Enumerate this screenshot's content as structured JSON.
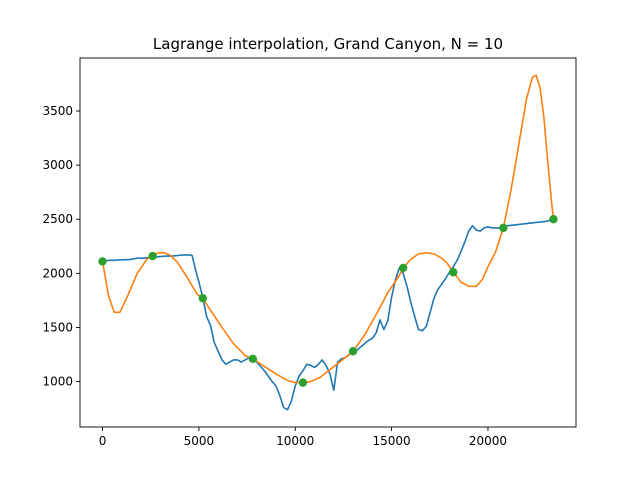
{
  "chart_data": {
    "type": "line",
    "title": "Lagrange interpolation, Grand Canyon, N = 10",
    "xlabel": "",
    "ylabel": "",
    "xlim": [
      -1170,
      24570
    ],
    "ylim": [
      580,
      3990
    ],
    "xticks": [
      0,
      5000,
      10000,
      15000,
      20000
    ],
    "yticks": [
      1000,
      1500,
      2000,
      2500,
      3000,
      3500
    ],
    "grid": false,
    "colors": {
      "profile": "#1f77b4",
      "interpolant": "#ff7f0e",
      "nodes": "#2ca02c"
    },
    "series": [
      {
        "kind": "line",
        "color": "#1f77b4",
        "x": [
          0,
          300,
          600,
          900,
          1200,
          1500,
          1800,
          2100,
          2400,
          2700,
          3000,
          3300,
          3600,
          3900,
          4200,
          4500,
          4650,
          4800,
          5000,
          5200,
          5400,
          5600,
          5800,
          6000,
          6200,
          6400,
          6600,
          6800,
          7000,
          7200,
          7400,
          7600,
          7800,
          8000,
          8200,
          8400,
          8600,
          8800,
          9000,
          9200,
          9400,
          9600,
          9800,
          10000,
          10200,
          10400,
          10600,
          10800,
          11000,
          11200,
          11400,
          11600,
          11800,
          12000,
          12200,
          12400,
          12600,
          12800,
          13000,
          13200,
          13400,
          13600,
          13800,
          14000,
          14200,
          14400,
          14600,
          14800,
          15000,
          15200,
          15400,
          15600,
          15800,
          16000,
          16200,
          16400,
          16600,
          16800,
          17000,
          17200,
          17400,
          17600,
          17800,
          18000,
          18200,
          18400,
          18600,
          18800,
          19000,
          19200,
          19400,
          19600,
          19800,
          20000,
          20200,
          20400,
          20600,
          20800,
          21000,
          21500,
          22000,
          22500,
          23000,
          23400
        ],
        "y": [
          2110,
          2120,
          2120,
          2125,
          2125,
          2130,
          2140,
          2140,
          2145,
          2150,
          2155,
          2160,
          2160,
          2165,
          2170,
          2170,
          2165,
          2050,
          1920,
          1780,
          1600,
          1520,
          1360,
          1280,
          1200,
          1160,
          1180,
          1200,
          1200,
          1180,
          1200,
          1220,
          1210,
          1180,
          1140,
          1100,
          1050,
          1000,
          960,
          870,
          760,
          740,
          820,
          960,
          1050,
          1100,
          1160,
          1150,
          1130,
          1160,
          1200,
          1150,
          1070,
          920,
          1180,
          1210,
          1220,
          1250,
          1270,
          1290,
          1320,
          1350,
          1380,
          1400,
          1450,
          1570,
          1480,
          1560,
          1780,
          1940,
          2050,
          2000,
          1880,
          1730,
          1600,
          1480,
          1470,
          1510,
          1640,
          1770,
          1850,
          1900,
          1950,
          2010,
          2060,
          2120,
          2200,
          2290,
          2390,
          2440,
          2400,
          2390,
          2420,
          2430,
          2420,
          2420,
          2420,
          2430,
          2440,
          2450,
          2460,
          2470,
          2480,
          2500
        ]
      },
      {
        "kind": "line",
        "color": "#ff7f0e",
        "x": [
          0,
          300,
          600,
          900,
          1300,
          1800,
          2300,
          2600,
          2900,
          3200,
          3500,
          3900,
          4400,
          4900,
          5200,
          5600,
          6200,
          6800,
          7400,
          7800,
          8400,
          9000,
          9600,
          10000,
          10400,
          10800,
          11300,
          11800,
          12300,
          13000,
          13600,
          14200,
          14800,
          15400,
          15600,
          16000,
          16400,
          16800,
          17200,
          17600,
          17900,
          18200,
          18600,
          19000,
          19400,
          19700,
          20000,
          20400,
          20800,
          21200,
          21600,
          22000,
          22300,
          22500,
          22700,
          22900,
          23100,
          23300,
          23400
        ],
        "y": [
          2110,
          1800,
          1640,
          1640,
          1790,
          2000,
          2130,
          2170,
          2190,
          2190,
          2170,
          2100,
          1960,
          1810,
          1770,
          1660,
          1500,
          1350,
          1240,
          1210,
          1140,
          1070,
          1010,
          990,
          990,
          1000,
          1040,
          1110,
          1180,
          1280,
          1430,
          1620,
          1820,
          1980,
          2050,
          2130,
          2180,
          2190,
          2180,
          2140,
          2090,
          2010,
          1920,
          1880,
          1880,
          1940,
          2060,
          2200,
          2420,
          2770,
          3190,
          3610,
          3810,
          3830,
          3720,
          3450,
          3040,
          2660,
          2500
        ]
      },
      {
        "kind": "scatter",
        "color": "#2ca02c",
        "x": [
          0,
          2600,
          5200,
          7800,
          10400,
          13000,
          15600,
          18200,
          20800,
          23400
        ],
        "y": [
          2110,
          2160,
          1770,
          1210,
          990,
          1280,
          2050,
          2010,
          2420,
          2500
        ]
      }
    ]
  }
}
